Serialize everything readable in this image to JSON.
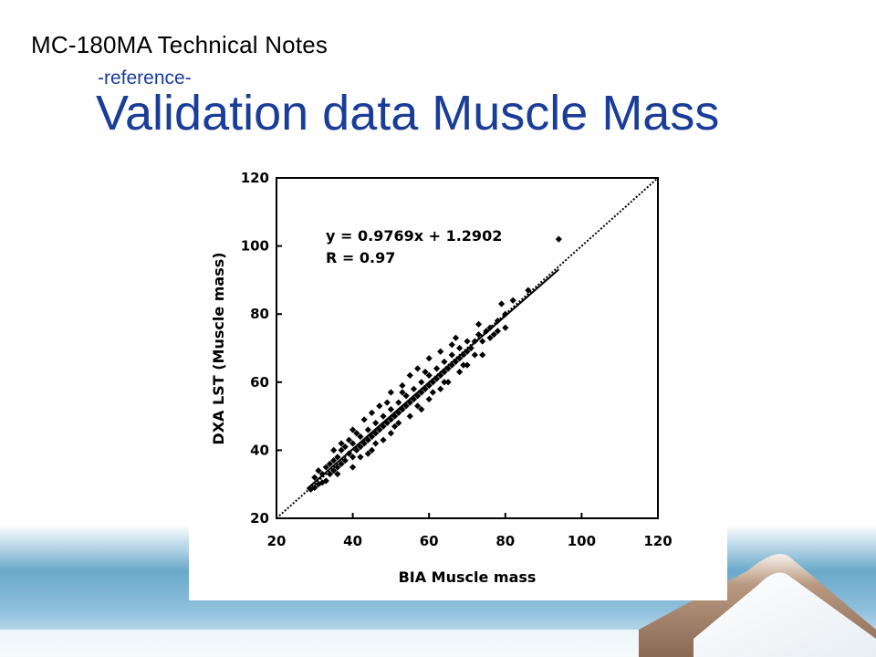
{
  "header": {
    "title": "MC-180MA  Technical Notes",
    "subtitle": "-reference-",
    "slide_title": "Validation data Muscle Mass"
  },
  "colors": {
    "title_blue": "#1a3d9a",
    "band_blue": "#5b9fc4",
    "mountain_brown": "#a07a5e"
  },
  "chart_data": {
    "type": "scatter",
    "xlabel": "BIA Muscle mass",
    "ylabel": "DXA LST (Muscle mass)",
    "xlim": [
      20,
      120
    ],
    "ylim": [
      20,
      120
    ],
    "xticks": [
      "20",
      "40",
      "60",
      "80",
      "100",
      "120"
    ],
    "yticks": [
      "20",
      "40",
      "60",
      "80",
      "100",
      "120"
    ],
    "grid": false,
    "annotations": [
      "y = 0.9769x + 1.2902",
      "R = 0.97"
    ],
    "regression": {
      "slope": 0.9769,
      "intercept": 1.2902,
      "x_range": [
        28,
        94
      ]
    },
    "identity_line": {
      "x": [
        20,
        120
      ],
      "y": [
        20,
        120
      ]
    },
    "points_sampled": [
      [
        29,
        28.5
      ],
      [
        30,
        29
      ],
      [
        31,
        30
      ],
      [
        32,
        30.5
      ],
      [
        32,
        33
      ],
      [
        33,
        31
      ],
      [
        33,
        35
      ],
      [
        34,
        33
      ],
      [
        35,
        34
      ],
      [
        35,
        37
      ],
      [
        36,
        35
      ],
      [
        36,
        38
      ],
      [
        37,
        36
      ],
      [
        37,
        40
      ],
      [
        38,
        37
      ],
      [
        38,
        41
      ],
      [
        39,
        39
      ],
      [
        40,
        38
      ],
      [
        40,
        42
      ],
      [
        41,
        40
      ],
      [
        42,
        41
      ],
      [
        42,
        44
      ],
      [
        43,
        42
      ],
      [
        44,
        43
      ],
      [
        44,
        46
      ],
      [
        45,
        44
      ],
      [
        46,
        45
      ],
      [
        46,
        48
      ],
      [
        47,
        46
      ],
      [
        48,
        47
      ],
      [
        48,
        50
      ],
      [
        49,
        48
      ],
      [
        50,
        49
      ],
      [
        50,
        52
      ],
      [
        51,
        50
      ],
      [
        52,
        51
      ],
      [
        52,
        54
      ],
      [
        53,
        52
      ],
      [
        54,
        53
      ],
      [
        54,
        56
      ],
      [
        55,
        54
      ],
      [
        56,
        55
      ],
      [
        56,
        58
      ],
      [
        57,
        56
      ],
      [
        58,
        57
      ],
      [
        58,
        60
      ],
      [
        59,
        58
      ],
      [
        60,
        59
      ],
      [
        60,
        62
      ],
      [
        61,
        60
      ],
      [
        62,
        61
      ],
      [
        62,
        64
      ],
      [
        63,
        62
      ],
      [
        64,
        63
      ],
      [
        64,
        66
      ],
      [
        65,
        64
      ],
      [
        66,
        65
      ],
      [
        66,
        68
      ],
      [
        67,
        66
      ],
      [
        68,
        67
      ],
      [
        68,
        70
      ],
      [
        69,
        68
      ],
      [
        70,
        69
      ],
      [
        70,
        72
      ],
      [
        71,
        70
      ],
      [
        72,
        72
      ],
      [
        73,
        74
      ],
      [
        74,
        72
      ],
      [
        75,
        75
      ],
      [
        76,
        76
      ],
      [
        77,
        74
      ],
      [
        78,
        78
      ],
      [
        80,
        76
      ],
      [
        80,
        80
      ],
      [
        79,
        83
      ],
      [
        82,
        84
      ],
      [
        86,
        87
      ],
      [
        94,
        102
      ],
      [
        40,
        35
      ],
      [
        45,
        40
      ],
      [
        50,
        45
      ],
      [
        55,
        50
      ],
      [
        60,
        55
      ],
      [
        65,
        60
      ],
      [
        70,
        65
      ],
      [
        35,
        40
      ],
      [
        40,
        46
      ],
      [
        45,
        51
      ],
      [
        50,
        57
      ],
      [
        55,
        62
      ],
      [
        60,
        67
      ],
      [
        42,
        38
      ],
      [
        48,
        43
      ],
      [
        52,
        48
      ],
      [
        58,
        52
      ],
      [
        63,
        58
      ],
      [
        68,
        63
      ],
      [
        74,
        68
      ],
      [
        37,
        42
      ],
      [
        43,
        49
      ],
      [
        47,
        53
      ],
      [
        53,
        59
      ],
      [
        57,
        64
      ],
      [
        63,
        69
      ],
      [
        67,
        73
      ],
      [
        30,
        32
      ],
      [
        31,
        34
      ],
      [
        34,
        36
      ],
      [
        36,
        33
      ],
      [
        39,
        43
      ],
      [
        41,
        45
      ],
      [
        44,
        39
      ],
      [
        46,
        42
      ],
      [
        49,
        54
      ],
      [
        51,
        47
      ],
      [
        53,
        57
      ],
      [
        57,
        53
      ],
      [
        59,
        63
      ],
      [
        61,
        57
      ],
      [
        64,
        60
      ],
      [
        66,
        71
      ],
      [
        69,
        65
      ],
      [
        72,
        68
      ],
      [
        73,
        77
      ],
      [
        76,
        73
      ],
      [
        78,
        75
      ]
    ]
  }
}
